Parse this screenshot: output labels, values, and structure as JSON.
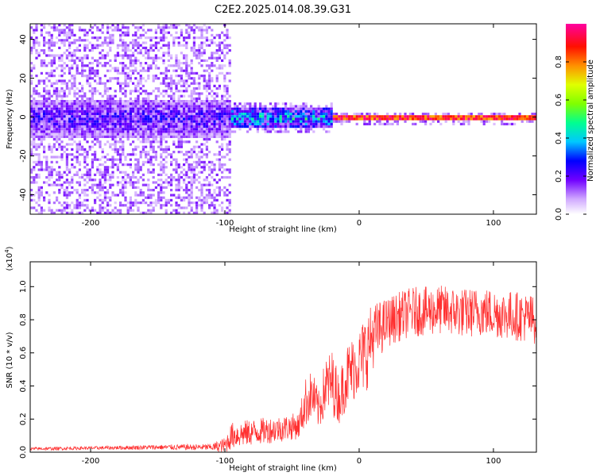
{
  "title": "C2E2.2025.014.08.39.G31",
  "colors": {
    "snr_line": "#ff3030",
    "colormap": [
      "#ffffff",
      "#b070ff",
      "#7000ff",
      "#0000ff",
      "#00d0ff",
      "#00ff80",
      "#a0ff00",
      "#ffff00",
      "#ff8000",
      "#ff0000",
      "#ff00a0"
    ]
  },
  "chart_data": [
    {
      "type": "heatmap",
      "xlabel": "Height of straight line (km)",
      "ylabel": "Frequency (Hz)",
      "xlim": [
        -245,
        132
      ],
      "ylim": [
        -50,
        48
      ],
      "xticks": [
        -200,
        -100,
        0,
        100
      ],
      "yticks": [
        40,
        20,
        0,
        -20,
        -40
      ],
      "colorbar": {
        "label": "Normalized spectral amplitude",
        "range": [
          0.0,
          1.0
        ],
        "ticks": [
          "0.0",
          "0.2",
          "0.4",
          "0.6",
          "0.8"
        ],
        "tick_values": [
          0.0,
          0.2,
          0.4,
          0.6,
          0.8
        ]
      },
      "bands": [
        {
          "x_from": -245,
          "x_to": -96,
          "noise_halfwidth_hz": 50,
          "core_halfwidth_hz": 10,
          "peak_amplitude": 0.3
        },
        {
          "x_from": -96,
          "x_to": -20,
          "noise_halfwidth_hz": 8,
          "core_halfwidth_hz": 5,
          "peak_amplitude": 0.55
        },
        {
          "x_from": -20,
          "x_to": 132,
          "noise_halfwidth_hz": 3,
          "core_halfwidth_hz": 1,
          "peak_amplitude": 1.0
        }
      ]
    },
    {
      "type": "line",
      "xlabel": "Height of straight line (km)",
      "ylabel": "SNR (10 * v/v)",
      "ylabel_scale": "(x10",
      "ylabel_exp": "4",
      "ylabel_scale_close": ")",
      "xlim": [
        -245,
        132
      ],
      "ylim": [
        0,
        1.15
      ],
      "xticks": [
        -200,
        -100,
        0,
        100
      ],
      "yticks": [
        "0.0",
        "0.2",
        "0.4",
        "0.6",
        "0.8",
        "1.0"
      ],
      "ytick_values": [
        0.0,
        0.2,
        0.4,
        0.6,
        0.8,
        1.0
      ],
      "x": [
        -245,
        -200,
        -150,
        -110,
        -100,
        -95,
        -80,
        -60,
        -45,
        -40,
        -35,
        -30,
        -25,
        -20,
        -15,
        -10,
        -5,
        0,
        5,
        10,
        20,
        30,
        40,
        50,
        60,
        70,
        80,
        90,
        100,
        110,
        120,
        132
      ],
      "values": [
        0.02,
        0.025,
        0.03,
        0.03,
        0.04,
        0.1,
        0.12,
        0.14,
        0.16,
        0.3,
        0.35,
        0.25,
        0.4,
        0.42,
        0.32,
        0.45,
        0.5,
        0.55,
        0.6,
        0.7,
        0.78,
        0.82,
        0.85,
        0.85,
        0.86,
        0.85,
        0.84,
        0.85,
        0.84,
        0.83,
        0.82,
        0.8
      ],
      "noise_amplitude": [
        0.01,
        0.01,
        0.015,
        0.02,
        0.05,
        0.08,
        0.08,
        0.08,
        0.08,
        0.15,
        0.15,
        0.12,
        0.18,
        0.2,
        0.15,
        0.2,
        0.2,
        0.2,
        0.25,
        0.2,
        0.15,
        0.15,
        0.15,
        0.15,
        0.15,
        0.15,
        0.15,
        0.15,
        0.15,
        0.15,
        0.15,
        0.15
      ]
    }
  ]
}
